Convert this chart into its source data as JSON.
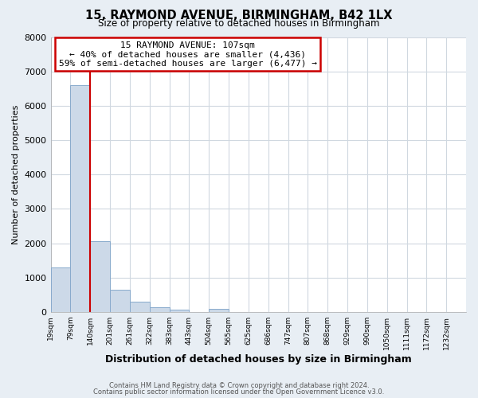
{
  "title": "15, RAYMOND AVENUE, BIRMINGHAM, B42 1LX",
  "subtitle": "Size of property relative to detached houses in Birmingham",
  "xlabel": "Distribution of detached houses by size in Birmingham",
  "ylabel": "Number of detached properties",
  "bin_labels": [
    "19sqm",
    "79sqm",
    "140sqm",
    "201sqm",
    "261sqm",
    "322sqm",
    "383sqm",
    "443sqm",
    "504sqm",
    "565sqm",
    "625sqm",
    "686sqm",
    "747sqm",
    "807sqm",
    "868sqm",
    "929sqm",
    "990sqm",
    "1050sqm",
    "1111sqm",
    "1172sqm",
    "1232sqm"
  ],
  "bar_heights": [
    1300,
    6600,
    2050,
    650,
    290,
    130,
    75,
    0,
    95,
    0,
    0,
    0,
    0,
    0,
    0,
    0,
    0,
    0,
    0,
    0,
    0
  ],
  "bar_color": "#ccd9e8",
  "bar_edgecolor": "#88aacc",
  "ylim": [
    0,
    8000
  ],
  "yticks": [
    0,
    1000,
    2000,
    3000,
    4000,
    5000,
    6000,
    7000,
    8000
  ],
  "property_line_x": 2.0,
  "property_line_color": "#cc0000",
  "annotation_title": "15 RAYMOND AVENUE: 107sqm",
  "annotation_line1": "← 40% of detached houses are smaller (4,436)",
  "annotation_line2": "59% of semi-detached houses are larger (6,477) →",
  "annotation_box_edgecolor": "#cc0000",
  "footer1": "Contains HM Land Registry data © Crown copyright and database right 2024.",
  "footer2": "Contains public sector information licensed under the Open Government Licence v3.0.",
  "fig_bg_color": "#e8eef4",
  "plot_bg_color": "#ffffff",
  "grid_color": "#d0d8e0"
}
